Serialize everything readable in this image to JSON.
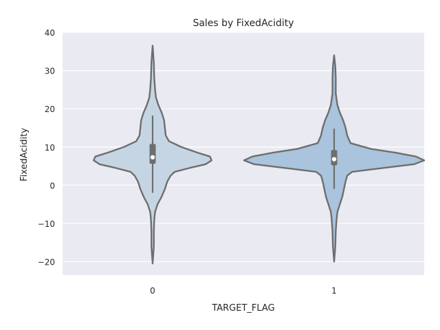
{
  "chart_data": {
    "type": "violin",
    "title": "Sales by FixedAcidity",
    "xlabel": "TARGET_FLAG",
    "ylabel": "FixedAcidity",
    "ylim": [
      -23.5,
      40
    ],
    "yticks": [
      40,
      30,
      20,
      10,
      0,
      -10,
      -20
    ],
    "ytick_labels": [
      "40",
      "30",
      "20",
      "10",
      "0",
      "−10",
      "−20"
    ],
    "categories": [
      "0",
      "1"
    ],
    "grid": true,
    "background": "#eaeaf2",
    "colors": {
      "violin_0": "#c5d5e4",
      "violin_1": "#a9c4dc",
      "outline": "#6e6e6e",
      "median": "#ffffff"
    },
    "series": [
      {
        "category": "0",
        "min": -20.5,
        "max": 36.5,
        "q1": 5.6,
        "median": 7.3,
        "q3": 10.8,
        "whisker_low": -2.0,
        "whisker_high": 18.2,
        "density": [
          [
            -20.5,
            0
          ],
          [
            -16,
            1.5
          ],
          [
            -12,
            1.5
          ],
          [
            -9,
            2
          ],
          [
            -7,
            3
          ],
          [
            -5,
            6
          ],
          [
            -3,
            11
          ],
          [
            -1,
            15
          ],
          [
            1,
            18
          ],
          [
            2.5,
            22
          ],
          [
            3.5,
            27
          ],
          [
            4.5,
            45
          ],
          [
            5.5,
            65
          ],
          [
            6.5,
            72
          ],
          [
            7.5,
            70
          ],
          [
            8.5,
            55
          ],
          [
            10,
            35
          ],
          [
            11.5,
            20
          ],
          [
            13,
            16
          ],
          [
            15,
            15
          ],
          [
            17,
            14
          ],
          [
            19,
            11
          ],
          [
            21,
            7
          ],
          [
            23,
            4
          ],
          [
            25,
            3
          ],
          [
            28,
            2
          ],
          [
            32,
            1.5
          ],
          [
            36.5,
            0
          ]
        ]
      },
      {
        "category": "1",
        "min": -20,
        "max": 34,
        "q1": 5.2,
        "median": 6.8,
        "q3": 9.2,
        "whisker_low": -1.0,
        "whisker_high": 14.8,
        "density": [
          [
            -20,
            0
          ],
          [
            -16,
            1.5
          ],
          [
            -12,
            2
          ],
          [
            -9,
            3
          ],
          [
            -7,
            4
          ],
          [
            -5,
            7
          ],
          [
            -3,
            10
          ],
          [
            -1,
            12
          ],
          [
            1,
            14
          ],
          [
            2.5,
            16
          ],
          [
            3.5,
            22
          ],
          [
            4.5,
            60
          ],
          [
            5.5,
            98
          ],
          [
            6.5,
            110
          ],
          [
            7.5,
            100
          ],
          [
            8.5,
            75
          ],
          [
            9.5,
            45
          ],
          [
            11,
            20
          ],
          [
            13,
            16
          ],
          [
            15,
            14
          ],
          [
            17,
            11
          ],
          [
            19,
            7
          ],
          [
            21,
            4
          ],
          [
            24,
            2
          ],
          [
            28,
            2
          ],
          [
            31,
            1.5
          ],
          [
            34,
            0
          ]
        ]
      }
    ]
  }
}
